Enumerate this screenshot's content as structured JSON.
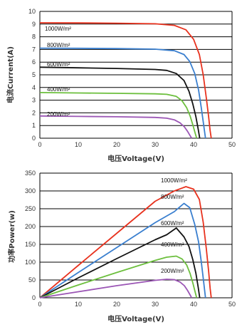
{
  "chart_data": [
    {
      "type": "line",
      "title": "",
      "xlabel": "电压Voltage(V)",
      "ylabel": "电流Current(A)",
      "xlim": [
        0,
        50
      ],
      "ylim": [
        0,
        10
      ],
      "xticks": [
        0,
        10,
        20,
        30,
        40,
        50
      ],
      "yticks": [
        0,
        1,
        2,
        3,
        4,
        5,
        6,
        7,
        8,
        9,
        10
      ],
      "grid": "horizontal",
      "series": [
        {
          "name": "1000W/m²",
          "color": "#e8321e",
          "x": [
            0,
            10,
            20,
            30,
            35,
            38,
            40,
            41.5,
            42.5,
            43.3,
            43.9,
            44.3,
            44.6
          ],
          "y": [
            9.1,
            9.09,
            9.07,
            9.02,
            8.9,
            8.55,
            7.8,
            6.6,
            5.0,
            3.2,
            1.7,
            0.6,
            0
          ]
        },
        {
          "name": "800W/m²",
          "color": "#3a7fcf",
          "x": [
            0,
            10,
            20,
            30,
            35,
            37.5,
            39,
            40.3,
            41.3,
            42,
            42.6,
            43.1
          ],
          "y": [
            7.1,
            7.09,
            7.07,
            7.02,
            6.9,
            6.6,
            6.05,
            5.1,
            3.8,
            2.4,
            1.1,
            0
          ]
        },
        {
          "name": "600W/m²",
          "color": "#111111",
          "x": [
            0,
            10,
            20,
            30,
            33,
            35.5,
            37.5,
            38.8,
            39.8,
            40.6,
            41.2,
            41.6
          ],
          "y": [
            5.6,
            5.55,
            5.5,
            5.42,
            5.35,
            5.1,
            4.55,
            3.7,
            2.7,
            1.7,
            0.7,
            0
          ]
        },
        {
          "name": "400W/m²",
          "color": "#6cbf3d",
          "x": [
            0,
            10,
            20,
            30,
            33,
            35.5,
            37,
            38.2,
            39.1,
            39.8,
            40.4,
            40.8
          ],
          "y": [
            3.6,
            3.57,
            3.54,
            3.5,
            3.46,
            3.3,
            2.95,
            2.4,
            1.75,
            1.05,
            0.4,
            0
          ]
        },
        {
          "name": "200W/m²",
          "color": "#9b56b5",
          "x": [
            0,
            10,
            20,
            30,
            33,
            35,
            36.5,
            37.6,
            38.4,
            39.1,
            39.5
          ],
          "y": [
            1.75,
            1.72,
            1.69,
            1.64,
            1.58,
            1.45,
            1.2,
            0.9,
            0.55,
            0.2,
            0
          ]
        }
      ]
    },
    {
      "type": "line",
      "title": "",
      "xlabel": "电压Voltage(V)",
      "ylabel": "功率Power(w)",
      "xlim": [
        0,
        50
      ],
      "ylim": [
        0,
        350
      ],
      "xticks": [
        0,
        10,
        20,
        30,
        40,
        50
      ],
      "yticks": [
        0,
        50,
        100,
        150,
        200,
        250,
        300,
        350
      ],
      "grid": "horizontal",
      "series": [
        {
          "name": "1000W/m²",
          "color": "#e8321e",
          "x": [
            0,
            10,
            20,
            30,
            35,
            38,
            40,
            41.5,
            42.5,
            43.3,
            43.9,
            44.3,
            44.6
          ],
          "y": [
            0,
            91,
            181,
            271,
            300,
            312,
            305,
            276,
            212,
            139,
            75,
            27,
            0
          ]
        },
        {
          "name": "800W/m²",
          "color": "#3a7fcf",
          "x": [
            0,
            10,
            20,
            30,
            35,
            37.5,
            39,
            40.3,
            41.3,
            42,
            42.6,
            43.1
          ],
          "y": [
            0,
            71,
            141,
            211,
            242,
            265,
            253,
            206,
            157,
            101,
            47,
            0
          ]
        },
        {
          "name": "600W/m²",
          "color": "#111111",
          "x": [
            0,
            10,
            20,
            30,
            33,
            35.5,
            37.5,
            38.8,
            39.8,
            40.6,
            41.2,
            41.6
          ],
          "y": [
            0,
            56,
            110,
            163,
            177,
            196,
            171,
            144,
            107,
            69,
            29,
            0
          ]
        },
        {
          "name": "400W/m²",
          "color": "#6cbf3d",
          "x": [
            0,
            10,
            20,
            30,
            33,
            35.5,
            37,
            38.2,
            39.1,
            39.8,
            40.4,
            40.8
          ],
          "y": [
            0,
            36,
            71,
            105,
            114,
            117,
            109,
            92,
            68,
            42,
            16,
            0
          ]
        },
        {
          "name": "200W/m²",
          "color": "#9b56b5",
          "x": [
            0,
            10,
            20,
            30,
            33,
            35,
            36.5,
            37.6,
            38.4,
            39.1,
            39.5
          ],
          "y": [
            0,
            17,
            34,
            49,
            52,
            51,
            44,
            34,
            21,
            8,
            0
          ]
        }
      ]
    }
  ]
}
